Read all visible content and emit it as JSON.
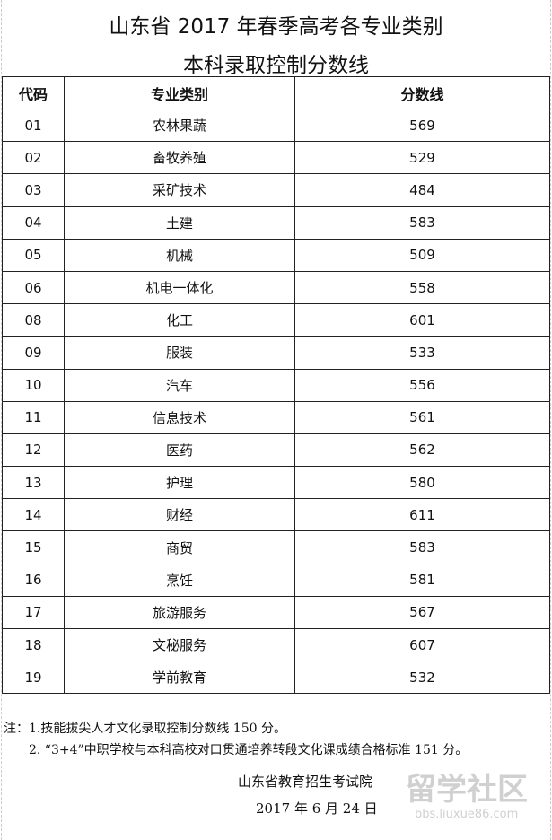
{
  "title_line1": "山东省 2017 年春季高考各专业类别",
  "title_line2": "本科录取控制分数线",
  "table": {
    "headers": [
      "代码",
      "专业类别",
      "分数线"
    ],
    "rows": [
      [
        "01",
        "农林果蔬",
        "569"
      ],
      [
        "02",
        "畜牧养殖",
        "529"
      ],
      [
        "03",
        "采矿技术",
        "484"
      ],
      [
        "04",
        "土建",
        "583"
      ],
      [
        "05",
        "机械",
        "509"
      ],
      [
        "06",
        "机电一体化",
        "558"
      ],
      [
        "08",
        "化工",
        "601"
      ],
      [
        "09",
        "服装",
        "533"
      ],
      [
        "10",
        "汽车",
        "556"
      ],
      [
        "11",
        "信息技术",
        "561"
      ],
      [
        "12",
        "医药",
        "562"
      ],
      [
        "13",
        "护理",
        "580"
      ],
      [
        "14",
        "财经",
        "611"
      ],
      [
        "15",
        "商贸",
        "583"
      ],
      [
        "16",
        "烹饪",
        "581"
      ],
      [
        "17",
        "旅游服务",
        "567"
      ],
      [
        "18",
        "文秘服务",
        "607"
      ],
      [
        "19",
        "学前教育",
        "532"
      ]
    ]
  },
  "notes": {
    "line1": "注：1.技能拔尖人才文化录取控制分数线 150 分。",
    "line2": "2. “3+4”中职学校与本科高校对口贯通培养转段文化课成绩合格标准 151 分。"
  },
  "signature": "山东省教育招生考试院",
  "date": "2017 年 6 月 24 日",
  "watermark": {
    "text": "留学社区",
    "url": "bbs.liuxue86.com"
  }
}
